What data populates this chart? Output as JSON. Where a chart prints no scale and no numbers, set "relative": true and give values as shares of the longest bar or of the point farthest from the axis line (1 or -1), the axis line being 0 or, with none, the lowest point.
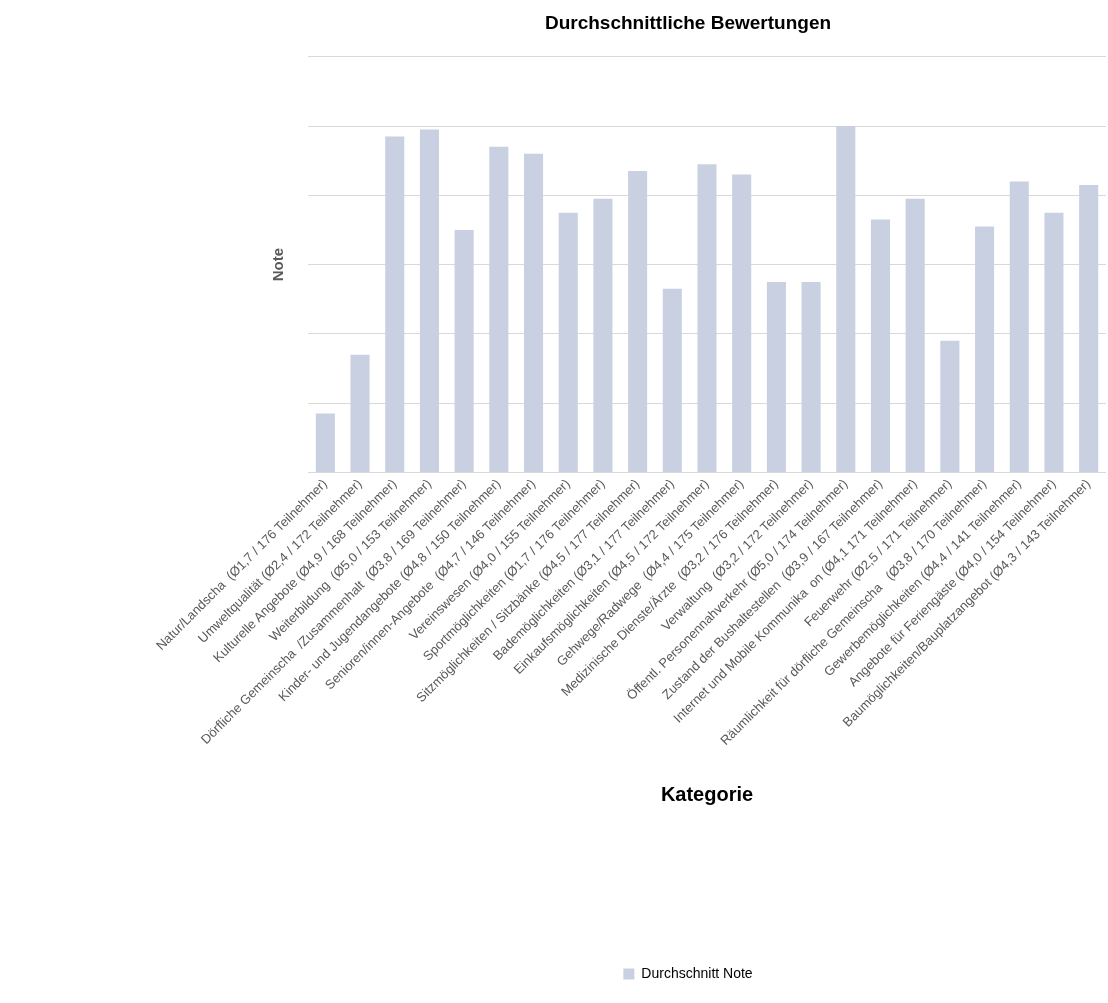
{
  "chart_data": {
    "type": "bar",
    "title": "Durchschnittliche Bewertungen",
    "xlabel": "Kategorie",
    "ylabel": "Note",
    "categories": [
      "Natur/Landscha  (Ø1,7 / 176 Teilnehmer)",
      "Umweltqualität (Ø2,4 / 172 Teilnehmer)",
      "Kulturelle Angebote (Ø4,9 / 168 Teilnehmer)",
      "Weiterbildung  (Ø5,0 / 153 Teilnehmer)",
      "Dörfliche Gemeinscha  /Zusammenhalt  (Ø3,8 / 169 Teilnehmer)",
      "Kinder- und Jugendangebote (Ø4,8 / 150 Teilnehmer)",
      "Senioren/innen-Angebote  (Ø4,7 / 146 Teilnehmer)",
      "Vereinswesen (Ø4,0 / 155 Teilnehmer)",
      "Sportmöglichkeiten (Ø1,7 / 176 Teilnehmer)",
      "Sitzmöglichkeiten / Sitzbänke (Ø4,5 / 177 Teilnehmer)",
      "Bademöglichkeiten (Ø3,1 / 177 Teilnehmer)",
      "Einkaufsmöglichkeiten (Ø4,5 / 172 Teilnehmer)",
      "Gehwege/Radwege  (Ø4,4 / 175 Teilnehmer)",
      "Medizinische Dienste/Ärzte  (Ø3,2 / 176 Teilnehmer)",
      "Verwaltung  (Ø3,2 / 172 Teilnehmer)",
      "Öffentl. Personennahverkehr (Ø5,0 / 174 Teilnehmer)",
      "Zustand der Bushaltestellen  (Ø3,9 / 167 Teilnehmer)",
      "Internet und Mobile Kommunika  on (Ø4,1 171 Teilnehmer)",
      "Feuerwehr (Ø2,5 / 171 Teilnehmer)",
      "Räumlichkeit für dörfliche Gemeinscha   (Ø3,8 / 170 Teilnehmer)",
      "Gewerbemöglichkeiten (Ø4,4 / 141 Teilnehmer)",
      "Angebote für Feriengäste (Ø4,0 / 154 Teilnehmer)",
      "Baumöglichkeiten/Bauplatzangebot (Ø4,3 / 143 Teilnehmer)"
    ],
    "series": [
      {
        "name": "Durchschnitt Note",
        "color": "#c9d0e1",
        "values": [
          0.17,
          0.34,
          0.97,
          0.99,
          0.7,
          0.94,
          0.92,
          0.75,
          0.79,
          0.87,
          0.53,
          0.89,
          0.86,
          0.55,
          0.55,
          1,
          0.73,
          0.79,
          0.38,
          0.71,
          0.84,
          0.75,
          0.83
        ]
      }
    ],
    "relative": true,
    "grid": "y",
    "legend": "bottom"
  }
}
